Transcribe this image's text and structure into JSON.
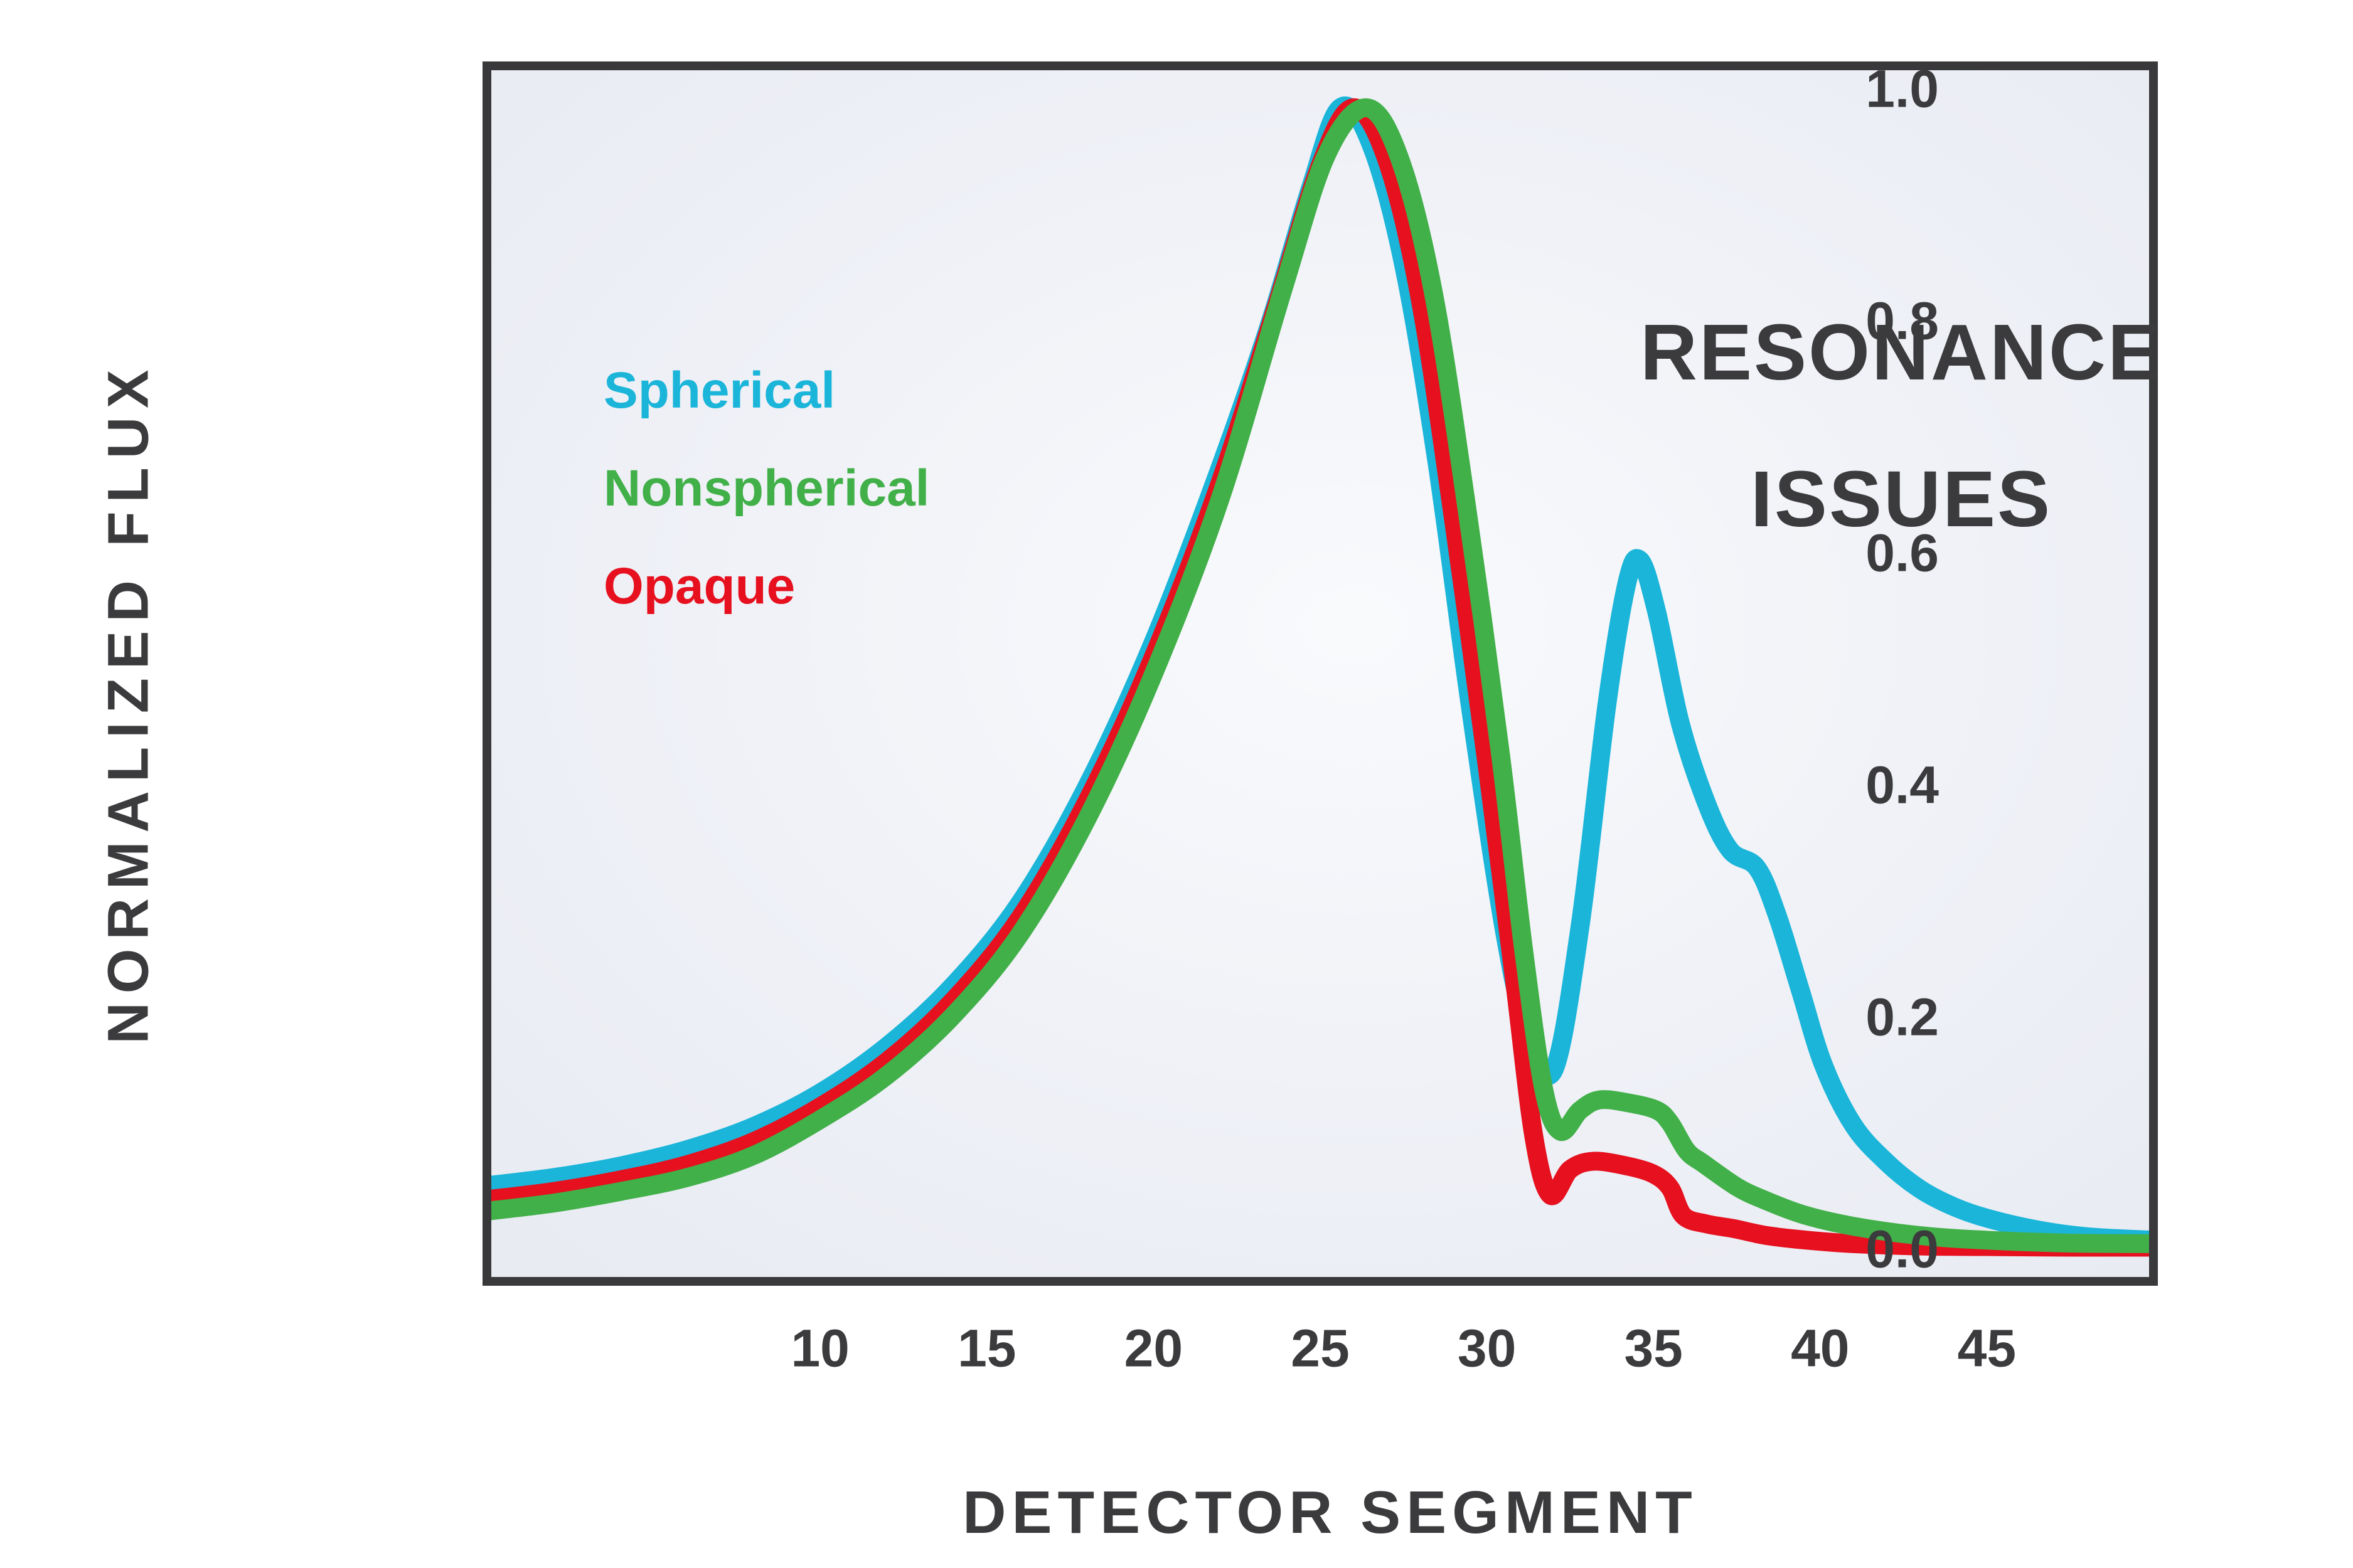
{
  "chart": {
    "title_line1": "RESONANCE",
    "title_line2": "ISSUES",
    "ylabel": "NORMALIZED FLUX",
    "xlabel": "DETECTOR SEGMENT"
  },
  "colors": {
    "spherical": "#1ab5d9",
    "nonspherical": "#42b049",
    "opaque": "#e6101e",
    "text": "#3b3b3d",
    "frame": "#39393b",
    "plot_bg_center": "#f9fafc",
    "plot_bg_edge": "#e8ebf2"
  },
  "chart_data": {
    "type": "line",
    "title": "RESONANCE ISSUES",
    "xlabel": "DETECTOR SEGMENT",
    "ylabel": "NORMALIZED FLUX",
    "xlim": [
      0,
      50
    ],
    "ylim": [
      0,
      1.05
    ],
    "x_ticks": [
      10,
      15,
      20,
      25,
      30,
      35,
      40,
      45
    ],
    "y_ticks": [
      1.0,
      0.8,
      0.6,
      0.4,
      0.2,
      0.0
    ],
    "grid": false,
    "legend_position": "upper-left-inside",
    "series": [
      {
        "name": "Spherical",
        "color": "#1ab5d9",
        "points": [
          [
            0,
            0.056
          ],
          [
            2,
            0.063
          ],
          [
            4,
            0.073
          ],
          [
            6,
            0.087
          ],
          [
            8,
            0.107
          ],
          [
            10,
            0.136
          ],
          [
            12,
            0.176
          ],
          [
            14,
            0.229
          ],
          [
            16,
            0.3
          ],
          [
            18,
            0.4
          ],
          [
            20,
            0.525
          ],
          [
            22,
            0.675
          ],
          [
            23.5,
            0.8
          ],
          [
            24.7,
            0.915
          ],
          [
            25.6,
            0.985
          ],
          [
            26.5,
            0.955
          ],
          [
            27.5,
            0.85
          ],
          [
            28.5,
            0.68
          ],
          [
            29.5,
            0.47
          ],
          [
            30.5,
            0.28
          ],
          [
            31.2,
            0.19
          ],
          [
            32.0,
            0.155
          ],
          [
            32.8,
            0.28
          ],
          [
            33.6,
            0.47
          ],
          [
            34.2,
            0.575
          ],
          [
            34.6,
            0.595
          ],
          [
            35.1,
            0.55
          ],
          [
            35.8,
            0.455
          ],
          [
            36.6,
            0.385
          ],
          [
            37.3,
            0.345
          ],
          [
            38.1,
            0.33
          ],
          [
            38.7,
            0.29
          ],
          [
            39.4,
            0.225
          ],
          [
            40.1,
            0.16
          ],
          [
            41,
            0.108
          ],
          [
            42,
            0.076
          ],
          [
            43,
            0.053
          ],
          [
            44,
            0.038
          ],
          [
            45,
            0.028
          ],
          [
            46.5,
            0.018
          ],
          [
            48,
            0.012
          ],
          [
            50,
            0.009
          ]
        ]
      },
      {
        "name": "Nonspherical",
        "color": "#42b049",
        "points": [
          [
            0,
            0.034
          ],
          [
            2,
            0.041
          ],
          [
            4,
            0.051
          ],
          [
            6,
            0.063
          ],
          [
            8,
            0.082
          ],
          [
            10,
            0.113
          ],
          [
            12,
            0.151
          ],
          [
            14,
            0.203
          ],
          [
            16,
            0.273
          ],
          [
            18,
            0.372
          ],
          [
            20,
            0.497
          ],
          [
            22,
            0.648
          ],
          [
            23.9,
            0.83
          ],
          [
            25.2,
            0.945
          ],
          [
            26.4,
            0.985
          ],
          [
            27.4,
            0.94
          ],
          [
            28.4,
            0.825
          ],
          [
            29.4,
            0.64
          ],
          [
            30.4,
            0.43
          ],
          [
            31.1,
            0.26
          ],
          [
            31.7,
            0.14
          ],
          [
            32.2,
            0.103
          ],
          [
            32.8,
            0.121
          ],
          [
            33.4,
            0.13
          ],
          [
            34.3,
            0.127
          ],
          [
            35.1,
            0.121
          ],
          [
            35.5,
            0.11
          ],
          [
            36.0,
            0.086
          ],
          [
            36.5,
            0.075
          ],
          [
            37.5,
            0.055
          ],
          [
            38.3,
            0.044
          ],
          [
            39.5,
            0.031
          ],
          [
            41,
            0.021
          ],
          [
            43,
            0.013
          ],
          [
            45,
            0.009
          ],
          [
            47.5,
            0.0065
          ],
          [
            50,
            0.006
          ]
        ]
      },
      {
        "name": "Opaque",
        "color": "#e6101e",
        "points": [
          [
            0,
            0.044
          ],
          [
            2,
            0.051
          ],
          [
            4,
            0.061
          ],
          [
            6,
            0.074
          ],
          [
            8,
            0.094
          ],
          [
            10,
            0.124
          ],
          [
            12,
            0.163
          ],
          [
            14,
            0.216
          ],
          [
            16,
            0.287
          ],
          [
            18,
            0.387
          ],
          [
            20,
            0.512
          ],
          [
            22,
            0.662
          ],
          [
            23.7,
            0.815
          ],
          [
            25,
            0.935
          ],
          [
            26,
            0.985
          ],
          [
            27,
            0.94
          ],
          [
            28,
            0.82
          ],
          [
            29,
            0.63
          ],
          [
            30,
            0.42
          ],
          [
            30.8,
            0.24
          ],
          [
            31.4,
            0.1
          ],
          [
            31.9,
            0.048
          ],
          [
            32.5,
            0.07
          ],
          [
            33.2,
            0.077
          ],
          [
            34.2,
            0.073
          ],
          [
            35.0,
            0.066
          ],
          [
            35.5,
            0.054
          ],
          [
            35.9,
            0.03
          ],
          [
            36.6,
            0.023
          ],
          [
            37.4,
            0.019
          ],
          [
            38.4,
            0.013
          ],
          [
            39.6,
            0.009
          ],
          [
            41,
            0.006
          ],
          [
            43,
            0.004
          ],
          [
            45,
            0.0035
          ],
          [
            47.5,
            0.003
          ],
          [
            50,
            0.003
          ]
        ]
      }
    ]
  }
}
